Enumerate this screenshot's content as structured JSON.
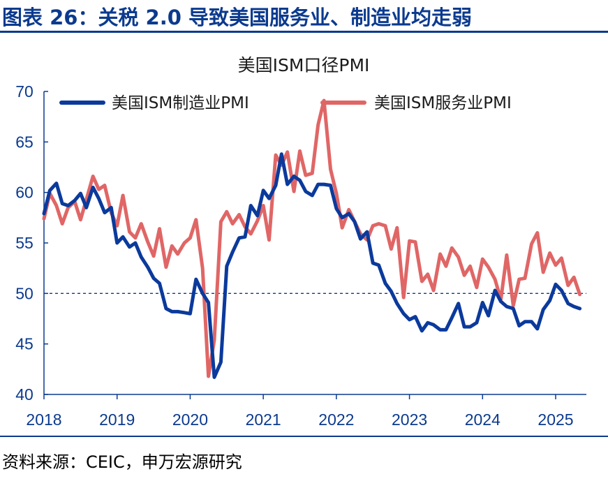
{
  "figure_heading": "图表 26：关税 2.0 导致美国服务业、制造业均走弱",
  "source_note": "资料来源：CEIC，申万宏源研究",
  "colors": {
    "heading": "#0b3a8e",
    "axis": "#0b3a8e",
    "manufacturing": "#0b3a9c",
    "services": "#e06666",
    "reference": "#0b3a8e"
  },
  "chart_data": {
    "type": "line",
    "title": "美国ISM口径PMI",
    "xlabel": "",
    "ylabel": "",
    "xlim": [
      2018.0,
      2025.42
    ],
    "ylim": [
      40,
      70
    ],
    "yticks": [
      "40",
      "45",
      "50",
      "55",
      "60",
      "65",
      "70"
    ],
    "xticks": [
      "2018",
      "2019",
      "2020",
      "2021",
      "2022",
      "2023",
      "2024",
      "2025"
    ],
    "reference_line": {
      "y": 50,
      "style": "dashed"
    },
    "legend": {
      "placement": "top"
    },
    "grid": false,
    "series": [
      {
        "name": "美国ISM制造业PMI",
        "points": [
          [
            2018.0,
            57.9
          ],
          [
            2018.08,
            60.2
          ],
          [
            2018.17,
            60.9
          ],
          [
            2018.25,
            58.9
          ],
          [
            2018.33,
            58.7
          ],
          [
            2018.42,
            59.2
          ],
          [
            2018.5,
            59.9
          ],
          [
            2018.58,
            58.5
          ],
          [
            2018.67,
            60.5
          ],
          [
            2018.75,
            59.4
          ],
          [
            2018.83,
            58.0
          ],
          [
            2018.92,
            58.5
          ],
          [
            2019.0,
            55.0
          ],
          [
            2019.08,
            55.6
          ],
          [
            2019.17,
            54.6
          ],
          [
            2019.25,
            55.0
          ],
          [
            2019.33,
            53.6
          ],
          [
            2019.42,
            52.6
          ],
          [
            2019.5,
            51.5
          ],
          [
            2019.58,
            51.0
          ],
          [
            2019.67,
            48.5
          ],
          [
            2019.75,
            48.2
          ],
          [
            2019.83,
            48.2
          ],
          [
            2019.92,
            48.1
          ],
          [
            2020.0,
            48.0
          ],
          [
            2020.08,
            51.4
          ],
          [
            2020.17,
            50.0
          ],
          [
            2020.25,
            49.1
          ],
          [
            2020.33,
            41.7
          ],
          [
            2020.42,
            43.2
          ],
          [
            2020.5,
            52.7
          ],
          [
            2020.58,
            54.1
          ],
          [
            2020.67,
            55.5
          ],
          [
            2020.75,
            55.6
          ],
          [
            2020.83,
            58.7
          ],
          [
            2020.92,
            57.7
          ],
          [
            2021.0,
            60.2
          ],
          [
            2021.08,
            59.4
          ],
          [
            2021.17,
            60.7
          ],
          [
            2021.25,
            63.8
          ],
          [
            2021.33,
            60.8
          ],
          [
            2021.42,
            61.6
          ],
          [
            2021.5,
            61.2
          ],
          [
            2021.58,
            60.1
          ],
          [
            2021.67,
            59.7
          ],
          [
            2021.75,
            60.8
          ],
          [
            2021.83,
            60.8
          ],
          [
            2021.92,
            60.7
          ],
          [
            2022.0,
            58.4
          ],
          [
            2022.08,
            57.5
          ],
          [
            2022.17,
            57.9
          ],
          [
            2022.25,
            57.1
          ],
          [
            2022.33,
            55.4
          ],
          [
            2022.42,
            56.1
          ],
          [
            2022.5,
            53.0
          ],
          [
            2022.58,
            52.8
          ],
          [
            2022.67,
            51.0
          ],
          [
            2022.75,
            50.2
          ],
          [
            2022.83,
            49.0
          ],
          [
            2022.92,
            48.0
          ],
          [
            2023.0,
            47.4
          ],
          [
            2023.08,
            47.7
          ],
          [
            2023.17,
            46.3
          ],
          [
            2023.25,
            47.1
          ],
          [
            2023.33,
            46.9
          ],
          [
            2023.42,
            46.4
          ],
          [
            2023.5,
            46.4
          ],
          [
            2023.58,
            47.6
          ],
          [
            2023.67,
            49.0
          ],
          [
            2023.75,
            46.7
          ],
          [
            2023.83,
            46.7
          ],
          [
            2023.92,
            47.1
          ],
          [
            2024.0,
            49.1
          ],
          [
            2024.08,
            47.8
          ],
          [
            2024.17,
            50.3
          ],
          [
            2024.25,
            49.2
          ],
          [
            2024.33,
            48.7
          ],
          [
            2024.42,
            48.5
          ],
          [
            2024.5,
            46.8
          ],
          [
            2024.58,
            47.2
          ],
          [
            2024.67,
            47.2
          ],
          [
            2024.75,
            46.5
          ],
          [
            2024.83,
            48.4
          ],
          [
            2024.92,
            49.3
          ],
          [
            2025.0,
            50.9
          ],
          [
            2025.08,
            50.3
          ],
          [
            2025.17,
            49.0
          ],
          [
            2025.25,
            48.7
          ],
          [
            2025.33,
            48.5
          ]
        ]
      },
      {
        "name": "美国ISM服务业PMI",
        "points": [
          [
            2018.0,
            57.4
          ],
          [
            2018.08,
            59.9
          ],
          [
            2018.17,
            58.7
          ],
          [
            2018.25,
            56.9
          ],
          [
            2018.33,
            58.5
          ],
          [
            2018.42,
            59.1
          ],
          [
            2018.5,
            57.3
          ],
          [
            2018.58,
            59.3
          ],
          [
            2018.67,
            61.6
          ],
          [
            2018.75,
            60.3
          ],
          [
            2018.83,
            60.7
          ],
          [
            2018.92,
            58.0
          ],
          [
            2019.0,
            56.7
          ],
          [
            2019.08,
            59.7
          ],
          [
            2019.17,
            56.1
          ],
          [
            2019.25,
            55.5
          ],
          [
            2019.33,
            56.9
          ],
          [
            2019.42,
            55.1
          ],
          [
            2019.5,
            53.7
          ],
          [
            2019.58,
            56.4
          ],
          [
            2019.67,
            52.6
          ],
          [
            2019.75,
            54.7
          ],
          [
            2019.83,
            53.9
          ],
          [
            2019.92,
            55.0
          ],
          [
            2020.0,
            55.5
          ],
          [
            2020.08,
            57.3
          ],
          [
            2020.17,
            52.5
          ],
          [
            2020.25,
            41.8
          ],
          [
            2020.33,
            45.4
          ],
          [
            2020.42,
            57.1
          ],
          [
            2020.5,
            58.1
          ],
          [
            2020.58,
            56.9
          ],
          [
            2020.67,
            57.8
          ],
          [
            2020.75,
            56.6
          ],
          [
            2020.83,
            55.9
          ],
          [
            2020.92,
            57.2
          ],
          [
            2021.0,
            58.7
          ],
          [
            2021.08,
            55.3
          ],
          [
            2021.17,
            63.7
          ],
          [
            2021.25,
            62.7
          ],
          [
            2021.33,
            64.0
          ],
          [
            2021.42,
            60.1
          ],
          [
            2021.5,
            64.1
          ],
          [
            2021.58,
            61.7
          ],
          [
            2021.67,
            61.9
          ],
          [
            2021.75,
            66.7
          ],
          [
            2021.83,
            69.1
          ],
          [
            2021.92,
            62.3
          ],
          [
            2022.0,
            59.9
          ],
          [
            2022.08,
            56.5
          ],
          [
            2022.17,
            58.3
          ],
          [
            2022.25,
            57.1
          ],
          [
            2022.33,
            55.9
          ],
          [
            2022.42,
            55.3
          ],
          [
            2022.5,
            56.7
          ],
          [
            2022.58,
            56.9
          ],
          [
            2022.67,
            56.7
          ],
          [
            2022.75,
            54.4
          ],
          [
            2022.83,
            56.5
          ],
          [
            2022.92,
            49.6
          ],
          [
            2023.0,
            55.2
          ],
          [
            2023.08,
            55.1
          ],
          [
            2023.17,
            51.2
          ],
          [
            2023.25,
            51.9
          ],
          [
            2023.33,
            50.3
          ],
          [
            2023.42,
            53.9
          ],
          [
            2023.5,
            52.7
          ],
          [
            2023.58,
            54.5
          ],
          [
            2023.67,
            53.6
          ],
          [
            2023.75,
            51.8
          ],
          [
            2023.83,
            52.7
          ],
          [
            2023.92,
            50.6
          ],
          [
            2024.0,
            53.4
          ],
          [
            2024.08,
            52.6
          ],
          [
            2024.17,
            51.4
          ],
          [
            2024.25,
            49.4
          ],
          [
            2024.33,
            53.8
          ],
          [
            2024.42,
            48.8
          ],
          [
            2024.5,
            51.4
          ],
          [
            2024.58,
            51.5
          ],
          [
            2024.67,
            54.9
          ],
          [
            2024.75,
            56.0
          ],
          [
            2024.83,
            52.1
          ],
          [
            2024.92,
            54.0
          ],
          [
            2025.0,
            52.8
          ],
          [
            2025.08,
            53.5
          ],
          [
            2025.17,
            50.8
          ],
          [
            2025.25,
            51.6
          ],
          [
            2025.33,
            49.9
          ]
        ]
      }
    ]
  }
}
